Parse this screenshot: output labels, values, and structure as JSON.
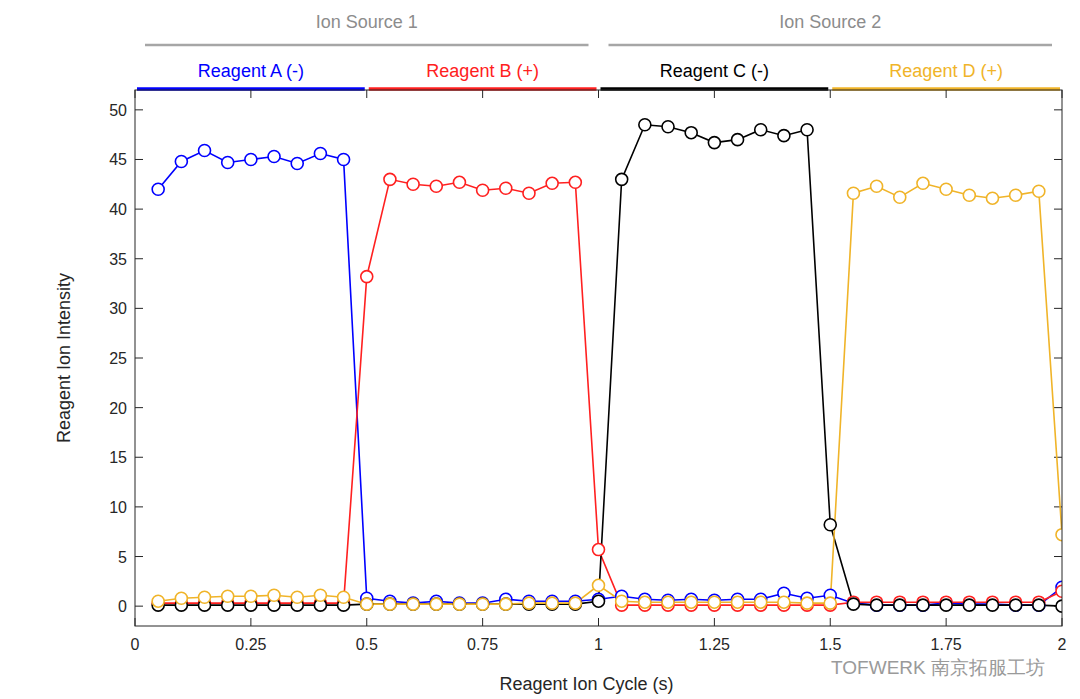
{
  "chart_data": {
    "type": "line",
    "xlabel": "Reagent Ion Cycle (s)",
    "ylabel": "Reagent Ion Intensity",
    "xlim": [
      0,
      2
    ],
    "ylim": [
      -2,
      52
    ],
    "xticks": [
      0,
      0.25,
      0.5,
      0.75,
      1,
      1.25,
      1.5,
      1.75,
      2
    ],
    "yticks": [
      0,
      5,
      10,
      15,
      20,
      25,
      30,
      35,
      40,
      45,
      50
    ],
    "marker": "circle",
    "annotations": [
      {
        "text": "Ion Source 1",
        "span": [
          0,
          1
        ]
      },
      {
        "text": "Ion Source 2",
        "span": [
          1,
          2
        ]
      }
    ],
    "watermark": "TOFWERK 南京拓服工坊",
    "x": [
      0.05,
      0.1,
      0.15,
      0.2,
      0.25,
      0.3,
      0.35,
      0.4,
      0.45,
      0.5,
      0.55,
      0.6,
      0.65,
      0.7,
      0.75,
      0.8,
      0.85,
      0.9,
      0.95,
      1.0,
      1.05,
      1.1,
      1.15,
      1.2,
      1.25,
      1.3,
      1.35,
      1.4,
      1.45,
      1.5,
      1.55,
      1.6,
      1.65,
      1.7,
      1.75,
      1.8,
      1.85,
      1.9,
      1.95,
      2.0
    ],
    "series": [
      {
        "name": "Reagent A (-)",
        "color": "#0000ff",
        "span": [
          0,
          0.5
        ],
        "values": [
          42,
          44.8,
          45.9,
          44.7,
          45,
          45.3,
          44.6,
          45.6,
          45,
          0.8,
          0.5,
          0.3,
          0.5,
          0.3,
          0.3,
          0.7,
          0.5,
          0.5,
          0.5,
          0.7,
          1.0,
          0.7,
          0.6,
          0.7,
          0.6,
          0.7,
          0.7,
          1.3,
          0.8,
          1.1,
          0.3,
          0.1,
          0.1,
          0.1,
          0.3,
          0.2,
          0.2,
          0.1,
          0.1,
          1.9
        ]
      },
      {
        "name": "Reagent B (+)",
        "color": "#ff2020",
        "span": [
          0.5,
          1
        ],
        "values": [
          0.3,
          0.3,
          0.3,
          0.3,
          0.3,
          0.3,
          0.3,
          0.3,
          0.3,
          33.2,
          43,
          42.5,
          42.3,
          42.7,
          41.9,
          42.1,
          41.6,
          42.6,
          42.7,
          5.7,
          0.1,
          0.1,
          0.1,
          0.1,
          0.1,
          0.1,
          0.1,
          0.1,
          0.1,
          0.1,
          0.4,
          0.4,
          0.4,
          0.4,
          0.4,
          0.4,
          0.4,
          0.4,
          0.4,
          1.5
        ]
      },
      {
        "name": "Reagent C (-)",
        "color": "#000000",
        "span": [
          1,
          1.5
        ],
        "values": [
          0.1,
          0.1,
          0.1,
          0.1,
          0.1,
          0.1,
          0.1,
          0.1,
          0.1,
          0.2,
          0.2,
          0.2,
          0.2,
          0.2,
          0.2,
          0.2,
          0.2,
          0.2,
          0.2,
          0.5,
          43,
          48.5,
          48.3,
          47.7,
          46.7,
          47,
          48,
          47.4,
          48,
          8.2,
          0.2,
          0.1,
          0.1,
          0.1,
          0.1,
          0.1,
          0.1,
          0.1,
          0.1,
          0
        ]
      },
      {
        "name": "Reagent D (+)",
        "color": "#f0b429",
        "span": [
          1.5,
          2
        ],
        "values": [
          0.5,
          0.8,
          0.9,
          1.0,
          1.0,
          1.1,
          0.9,
          1.1,
          0.9,
          0.2,
          0.2,
          0.2,
          0.2,
          0.2,
          0.2,
          0.2,
          0.3,
          0.3,
          0.3,
          2.1,
          0.5,
          0.4,
          0.4,
          0.4,
          0.4,
          0.4,
          0.4,
          0.4,
          0.3,
          0.3,
          41.6,
          42.3,
          41.2,
          42.6,
          42,
          41.4,
          41.1,
          41.4,
          41.8,
          7.2
        ]
      }
    ]
  }
}
